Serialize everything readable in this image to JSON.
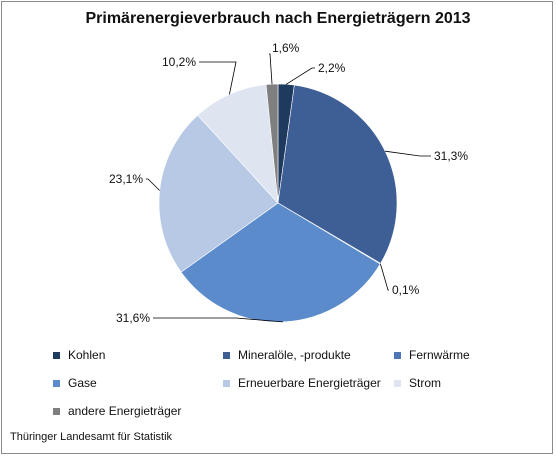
{
  "chart_data": {
    "type": "pie",
    "title": "Primärenergieverbrauch nach Energieträgern 2013",
    "slices": [
      {
        "name": "Kohlen",
        "value": 2.2,
        "label": "2,2%",
        "color": "#1f3a5f"
      },
      {
        "name": "Mineralöle, -produkte",
        "value": 31.3,
        "label": "31,3%",
        "color": "#3e5f96"
      },
      {
        "name": "Fernwärme",
        "value": 0.1,
        "label": "0,1%",
        "color": "#4e77b6"
      },
      {
        "name": "Gase",
        "value": 31.6,
        "label": "31,6%",
        "color": "#5b8bcb"
      },
      {
        "name": "Erneuerbare Energieträger",
        "value": 23.1,
        "label": "23,1%",
        "color": "#b8c9e6"
      },
      {
        "name": "Strom",
        "value": 10.2,
        "label": "10,2%",
        "color": "#dee5f1"
      },
      {
        "name": "andere Energieträger",
        "value": 1.6,
        "label": "1,6%",
        "color": "#7f7f7f"
      }
    ],
    "legend_position": "bottom"
  },
  "source": "Thüringer Landesamt für Statistik"
}
